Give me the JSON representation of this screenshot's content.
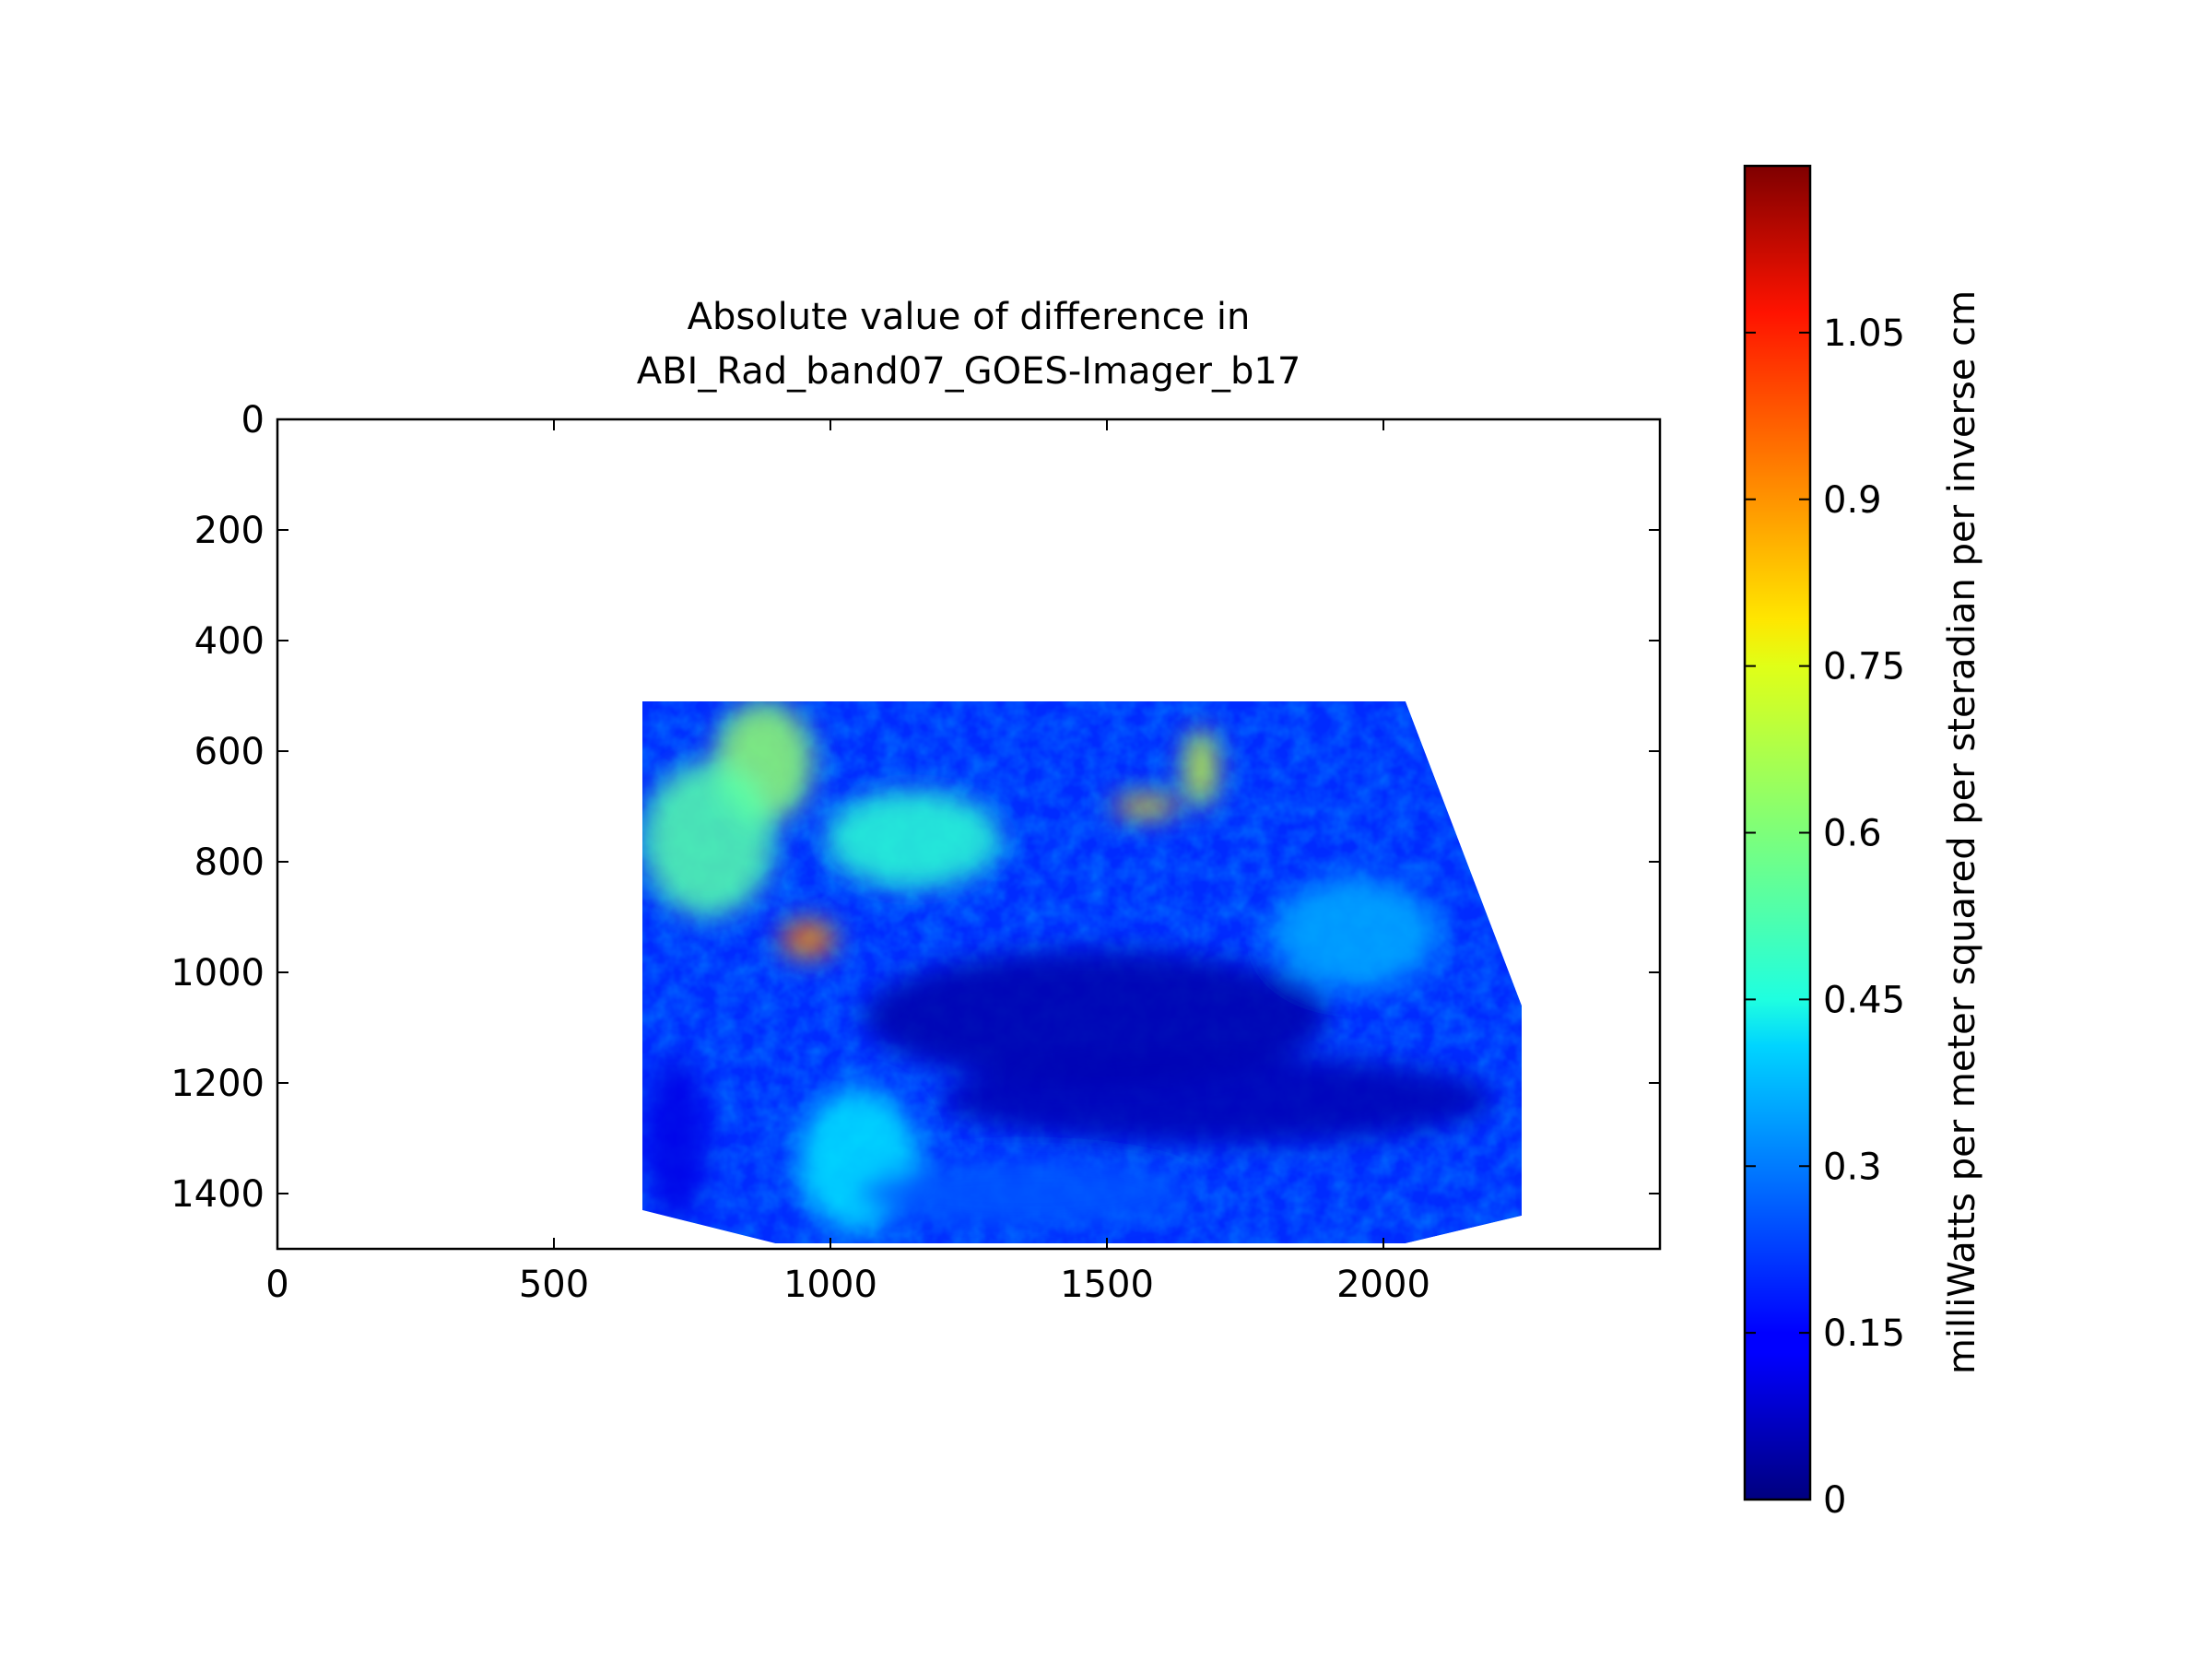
{
  "chart_data": {
    "type": "heatmap",
    "title": [
      "Absolute value of difference in",
      "ABI_Rad_band07_GOES-Imager_b17"
    ],
    "xlabel": "",
    "ylabel": "",
    "xlim": [
      0,
      2500
    ],
    "ylim": [
      1500,
      0
    ],
    "xticks": [
      0,
      500,
      1000,
      1500,
      2000
    ],
    "yticks": [
      0,
      200,
      400,
      600,
      800,
      1000,
      1200,
      1400
    ],
    "grid": false,
    "data_region": {
      "outline": [
        [
          660,
          510
        ],
        [
          2040,
          510
        ],
        [
          2250,
          1060
        ],
        [
          2250,
          1440
        ],
        [
          2040,
          1490
        ],
        [
          900,
          1490
        ],
        [
          660,
          1430
        ]
      ],
      "features": [
        {
          "x": 960,
          "y": 940,
          "rx": 50,
          "ry": 35,
          "value": 0.9
        },
        {
          "x": 880,
          "y": 620,
          "rx": 90,
          "ry": 110,
          "value": 0.62
        },
        {
          "x": 780,
          "y": 760,
          "rx": 120,
          "ry": 140,
          "value": 0.55
        },
        {
          "x": 1150,
          "y": 760,
          "rx": 160,
          "ry": 90,
          "value": 0.5
        },
        {
          "x": 1570,
          "y": 700,
          "rx": 60,
          "ry": 20,
          "value": 0.8
        },
        {
          "x": 1670,
          "y": 630,
          "rx": 30,
          "ry": 70,
          "value": 0.7
        },
        {
          "x": 1480,
          "y": 1080,
          "rx": 420,
          "ry": 120,
          "value": 0.05
        },
        {
          "x": 1700,
          "y": 1230,
          "rx": 500,
          "ry": 80,
          "value": 0.06
        },
        {
          "x": 1050,
          "y": 1340,
          "rx": 110,
          "ry": 130,
          "value": 0.42
        },
        {
          "x": 1350,
          "y": 1400,
          "rx": 300,
          "ry": 60,
          "value": 0.25
        },
        {
          "x": 1950,
          "y": 930,
          "rx": 150,
          "ry": 100,
          "value": 0.35
        },
        {
          "x": 720,
          "y": 1300,
          "rx": 60,
          "ry": 150,
          "value": 0.12
        }
      ]
    },
    "colorbar": {
      "colormap": "jet",
      "range": [
        0,
        1.2
      ],
      "ticks": [
        0,
        0.15,
        0.3,
        0.45,
        0.6,
        0.75,
        0.9,
        1.05
      ],
      "tick_labels": [
        "0",
        "0.15",
        "0.3",
        "0.45",
        "0.6",
        "0.75",
        "0.9",
        "1.05"
      ],
      "label": "milliWatts per meter squared per steradian per inverse cm"
    }
  }
}
